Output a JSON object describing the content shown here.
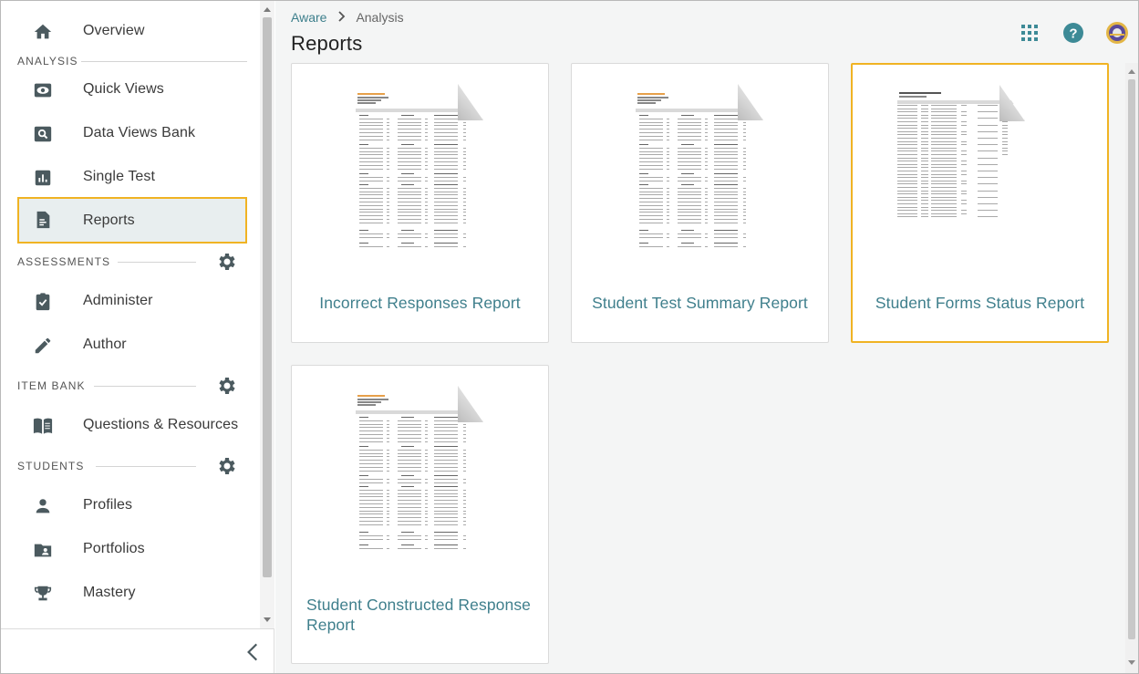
{
  "sidebar": {
    "top_items": [
      {
        "label": "Overview",
        "icon": "home-icon"
      }
    ],
    "sections": [
      {
        "title": "ANALYSIS",
        "has_settings": false,
        "items": [
          {
            "label": "Quick Views",
            "icon": "eye-icon"
          },
          {
            "label": "Data Views Bank",
            "icon": "search-box-icon"
          },
          {
            "label": "Single Test",
            "icon": "bar-chart-icon"
          },
          {
            "label": "Reports",
            "icon": "report-icon",
            "active": true
          }
        ]
      },
      {
        "title": "ASSESSMENTS",
        "has_settings": true,
        "items": [
          {
            "label": "Administer",
            "icon": "clipboard-check-icon"
          },
          {
            "label": "Author",
            "icon": "pencil-icon"
          }
        ]
      },
      {
        "title": "ITEM BANK",
        "has_settings": true,
        "items": [
          {
            "label": "Questions & Resources",
            "icon": "book-icon"
          }
        ]
      },
      {
        "title": "STUDENTS",
        "has_settings": true,
        "items": [
          {
            "label": "Profiles",
            "icon": "person-icon"
          },
          {
            "label": "Portfolios",
            "icon": "folder-person-icon"
          },
          {
            "label": "Mastery",
            "icon": "trophy-icon"
          }
        ]
      }
    ]
  },
  "breadcrumb": {
    "root": "Aware",
    "current": "Analysis"
  },
  "page_title": "Reports",
  "header_icons": [
    "apps-grid-icon",
    "help-icon",
    "user-avatar-icon"
  ],
  "colors": {
    "accent": "#f0b323",
    "link": "#3f7f8c",
    "icon": "#4b5a5f",
    "help": "#3d8a96"
  },
  "reports": [
    {
      "title": "Incorrect Responses Report",
      "selected": false
    },
    {
      "title": "Student Test Summary Report",
      "selected": false
    },
    {
      "title": "Student Forms Status Report",
      "selected": true
    },
    {
      "title": "Student Constructed Response Report",
      "selected": false
    }
  ]
}
